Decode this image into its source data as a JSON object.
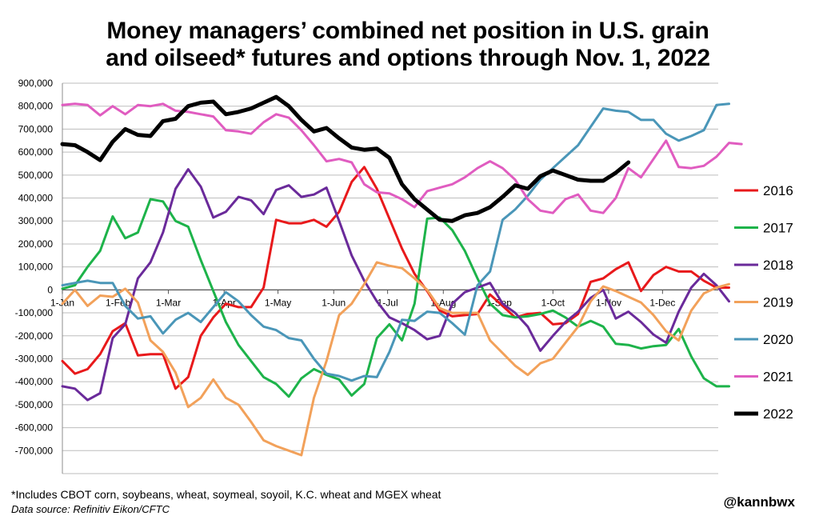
{
  "chart_data": {
    "type": "line",
    "title_line1": "Money managers’ combined net position in U.S. grain",
    "title_line2": "and oilseed* futures and options through Nov. 1, 2022",
    "xlabel": "",
    "ylabel": "",
    "x_domain": [
      0,
      365
    ],
    "ylim": [
      -800000,
      900000
    ],
    "yticks": [
      900000,
      800000,
      700000,
      600000,
      500000,
      400000,
      300000,
      200000,
      100000,
      0,
      -100000,
      -200000,
      -300000,
      -400000,
      -500000,
      -600000,
      -700000
    ],
    "ytick_labels": [
      "900,000",
      "800,000",
      "700,000",
      "600,000",
      "500,000",
      "400,000",
      "300,000",
      "200,000",
      "100,000",
      "0",
      "-100,000",
      "-200,000",
      "-300,000",
      "-400,000",
      "-500,000",
      "-600,000",
      "-700,000"
    ],
    "xticks": [
      {
        "day": 0,
        "label": "1-Jan"
      },
      {
        "day": 31,
        "label": "1-Feb"
      },
      {
        "day": 59,
        "label": "1-Mar"
      },
      {
        "day": 90,
        "label": "1-Apr"
      },
      {
        "day": 120,
        "label": "1-May"
      },
      {
        "day": 151,
        "label": "1-Jun"
      },
      {
        "day": 181,
        "label": "1-Jul"
      },
      {
        "day": 212,
        "label": "1-Aug"
      },
      {
        "day": 243,
        "label": "1-Sep"
      },
      {
        "day": 273,
        "label": "1-Oct"
      },
      {
        "day": 304,
        "label": "1-Nov"
      },
      {
        "day": 334,
        "label": "1-Dec"
      }
    ],
    "grid": true,
    "legend_position": "right",
    "series": [
      {
        "name": "2016",
        "color": "#e8191b",
        "width": 3,
        "values": [
          -310000,
          -365000,
          -345000,
          -280000,
          -180000,
          -145000,
          -285000,
          -280000,
          -280000,
          -430000,
          -380000,
          -200000,
          -120000,
          -60000,
          -75000,
          -75000,
          10000,
          305000,
          290000,
          290000,
          305000,
          275000,
          340000,
          470000,
          535000,
          440000,
          310000,
          180000,
          70000,
          -5000,
          -90000,
          -115000,
          -110000,
          -105000,
          -20000,
          -70000,
          -120000,
          -105000,
          -100000,
          -150000,
          -145000,
          -105000,
          35000,
          50000,
          90000,
          120000,
          -5000,
          65000,
          100000,
          80000,
          80000,
          40000,
          10000,
          10000
        ]
      },
      {
        "name": "2017",
        "color": "#1db34a",
        "width": 3,
        "values": [
          5000,
          20000,
          100000,
          170000,
          320000,
          225000,
          250000,
          395000,
          385000,
          300000,
          275000,
          130000,
          -5000,
          -140000,
          -240000,
          -310000,
          -380000,
          -410000,
          -465000,
          -385000,
          -345000,
          -370000,
          -390000,
          -460000,
          -410000,
          -210000,
          -150000,
          -220000,
          -60000,
          310000,
          315000,
          260000,
          170000,
          50000,
          -60000,
          -110000,
          -120000,
          -115000,
          -105000,
          -90000,
          -120000,
          -160000,
          -135000,
          -160000,
          -235000,
          -240000,
          -255000,
          -245000,
          -240000,
          -170000,
          -290000,
          -385000,
          -420000,
          -420000
        ]
      },
      {
        "name": "2018",
        "color": "#6a2a9a",
        "width": 3,
        "values": [
          -420000,
          -430000,
          -480000,
          -450000,
          -210000,
          -150000,
          50000,
          120000,
          250000,
          440000,
          525000,
          450000,
          315000,
          340000,
          405000,
          390000,
          330000,
          435000,
          455000,
          405000,
          415000,
          445000,
          300000,
          150000,
          40000,
          -50000,
          -120000,
          -145000,
          -175000,
          -215000,
          -200000,
          -60000,
          -10000,
          10000,
          30000,
          -60000,
          -100000,
          -160000,
          -265000,
          -200000,
          -140000,
          -95000,
          -35000,
          0,
          -125000,
          -95000,
          -140000,
          -195000,
          -230000,
          -95000,
          10000,
          70000,
          20000,
          -50000
        ]
      },
      {
        "name": "2019",
        "color": "#f2a15a",
        "width": 3,
        "values": [
          -60000,
          0,
          -70000,
          -25000,
          -30000,
          5000,
          -55000,
          -220000,
          -270000,
          -360000,
          -510000,
          -470000,
          -390000,
          -470000,
          -500000,
          -575000,
          -655000,
          -680000,
          -700000,
          -720000,
          -470000,
          -310000,
          -110000,
          -60000,
          25000,
          120000,
          105000,
          95000,
          50000,
          0,
          -80000,
          -100000,
          -100000,
          -100000,
          -220000,
          -275000,
          -330000,
          -370000,
          -320000,
          -300000,
          -230000,
          -160000,
          -50000,
          15000,
          -5000,
          -30000,
          -55000,
          -110000,
          -180000,
          -220000,
          -90000,
          -15000,
          10000,
          25000
        ]
      },
      {
        "name": "2020",
        "color": "#4a96b8",
        "width": 3,
        "values": [
          20000,
          30000,
          40000,
          30000,
          30000,
          -70000,
          -125000,
          -115000,
          -190000,
          -130000,
          -100000,
          -140000,
          -75000,
          -10000,
          -50000,
          -110000,
          -160000,
          -175000,
          -210000,
          -220000,
          -300000,
          -365000,
          -375000,
          -395000,
          -375000,
          -380000,
          -270000,
          -130000,
          -135000,
          -95000,
          -100000,
          -145000,
          -195000,
          20000,
          80000,
          305000,
          350000,
          410000,
          480000,
          530000,
          580000,
          630000,
          710000,
          790000,
          780000,
          775000,
          740000,
          740000,
          680000,
          650000,
          670000,
          695000,
          805000,
          810000
        ]
      },
      {
        "name": "2021",
        "color": "#e05cc0",
        "width": 3,
        "values": [
          805000,
          810000,
          805000,
          760000,
          800000,
          765000,
          805000,
          800000,
          810000,
          780000,
          775000,
          765000,
          755000,
          695000,
          690000,
          680000,
          730000,
          765000,
          750000,
          695000,
          630000,
          560000,
          570000,
          555000,
          460000,
          425000,
          420000,
          395000,
          360000,
          430000,
          445000,
          460000,
          490000,
          530000,
          560000,
          530000,
          480000,
          395000,
          345000,
          335000,
          395000,
          415000,
          345000,
          335000,
          400000,
          530000,
          490000,
          570000,
          650000,
          535000,
          530000,
          540000,
          580000,
          640000,
          635000
        ]
      },
      {
        "name": "2022",
        "color": "#000000",
        "width": 5,
        "values": [
          635000,
          630000,
          600000,
          565000,
          645000,
          700000,
          675000,
          670000,
          735000,
          745000,
          800000,
          815000,
          820000,
          765000,
          775000,
          790000,
          815000,
          840000,
          800000,
          740000,
          690000,
          705000,
          660000,
          620000,
          610000,
          615000,
          575000,
          460000,
          395000,
          350000,
          305000,
          300000,
          325000,
          335000,
          360000,
          405000,
          455000,
          440000,
          495000,
          520000,
          500000,
          480000,
          475000,
          475000,
          510000,
          555000
        ]
      }
    ],
    "footnote": "*Includes CBOT corn, soybeans, wheat, soymeal, soyoil, K.C. wheat and MGEX wheat",
    "source": "Data source: Refinitiv Eikon/CFTC",
    "handle": "@kannbwx"
  }
}
